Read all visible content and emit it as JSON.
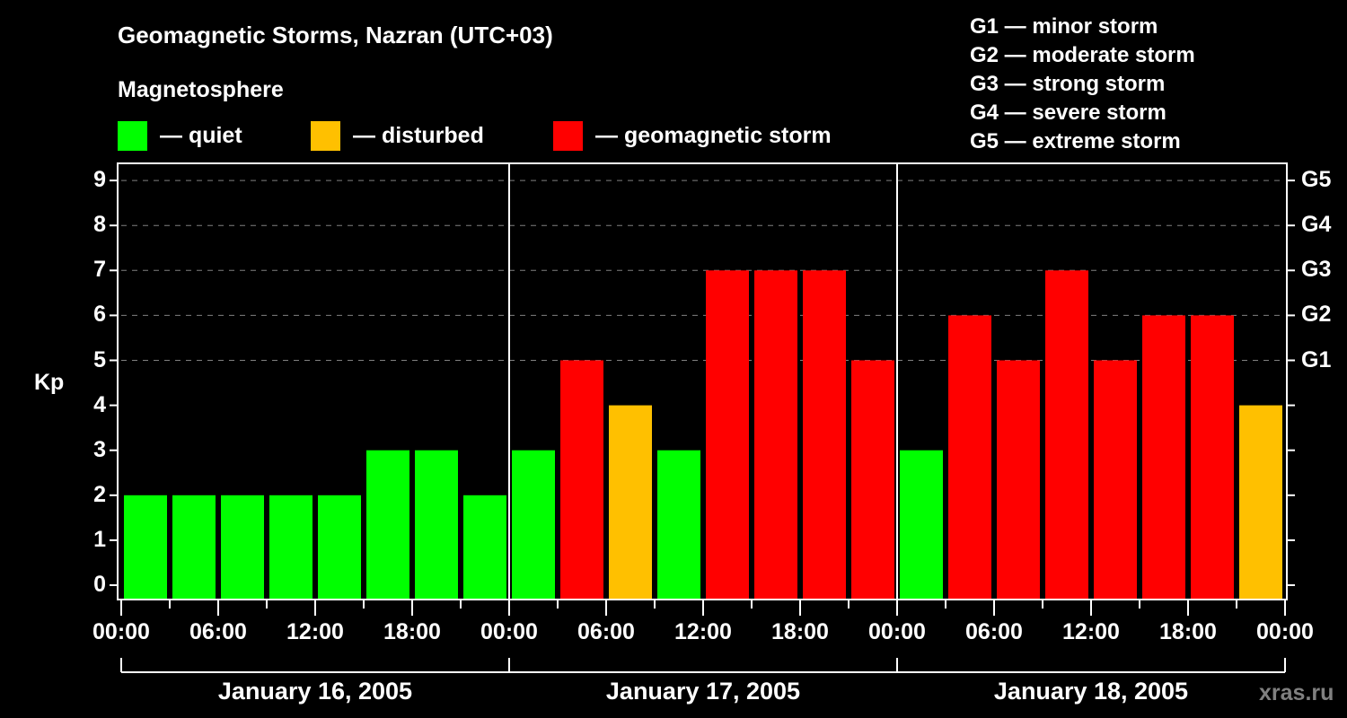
{
  "header": {
    "title": "Geomagnetic Storms, Nazran (UTC+03)",
    "subtitle": "Magnetosphere"
  },
  "legend": [
    {
      "label": "— quiet",
      "color": "#00ff00"
    },
    {
      "label": "— disturbed",
      "color": "#ffc000"
    },
    {
      "label": "— geomagnetic storm",
      "color": "#ff0000"
    }
  ],
  "g_legend": [
    "G1 — minor storm",
    "G2 — moderate storm",
    "G3 — strong storm",
    "G4 — severe storm",
    "G5 — extreme storm"
  ],
  "axis": {
    "ylabel": "Kp",
    "yticks": [
      "0",
      "1",
      "2",
      "3",
      "4",
      "5",
      "6",
      "7",
      "8",
      "9"
    ],
    "gticks": [
      {
        "kp": 5,
        "label": "G1"
      },
      {
        "kp": 6,
        "label": "G2"
      },
      {
        "kp": 7,
        "label": "G3"
      },
      {
        "kp": 8,
        "label": "G4"
      },
      {
        "kp": 9,
        "label": "G5"
      }
    ],
    "xticks": [
      "00:00",
      "06:00",
      "12:00",
      "18:00",
      "00:00",
      "06:00",
      "12:00",
      "18:00",
      "00:00",
      "06:00",
      "12:00",
      "18:00",
      "00:00"
    ],
    "days": [
      "January 16, 2005",
      "January 17, 2005",
      "January 18, 2005"
    ]
  },
  "watermark": "xras.ru",
  "colors": {
    "quiet": "#00ff00",
    "disturbed": "#ffc000",
    "storm": "#ff0000",
    "grid": "#808080"
  },
  "chart_data": {
    "type": "bar",
    "title": "Geomagnetic Storms, Nazran (UTC+03)",
    "xlabel": "",
    "ylabel": "Kp",
    "ylim": [
      0,
      9
    ],
    "grid": "dashed horizontal at Kp 5-9",
    "categories": [
      "Jan 16 00:00",
      "Jan 16 03:00",
      "Jan 16 06:00",
      "Jan 16 09:00",
      "Jan 16 12:00",
      "Jan 16 15:00",
      "Jan 16 18:00",
      "Jan 16 21:00",
      "Jan 17 00:00",
      "Jan 17 03:00",
      "Jan 17 06:00",
      "Jan 17 09:00",
      "Jan 17 12:00",
      "Jan 17 15:00",
      "Jan 17 18:00",
      "Jan 17 21:00",
      "Jan 18 00:00",
      "Jan 18 03:00",
      "Jan 18 06:00",
      "Jan 18 09:00",
      "Jan 18 12:00",
      "Jan 18 15:00",
      "Jan 18 18:00",
      "Jan 18 21:00"
    ],
    "values": [
      2,
      2,
      2,
      2,
      2,
      3,
      3,
      2,
      3,
      5,
      4,
      3,
      7,
      7,
      7,
      5,
      3,
      6,
      5,
      7,
      5,
      6,
      6,
      4
    ],
    "status": [
      "quiet",
      "quiet",
      "quiet",
      "quiet",
      "quiet",
      "quiet",
      "quiet",
      "quiet",
      "quiet",
      "storm",
      "disturbed",
      "quiet",
      "storm",
      "storm",
      "storm",
      "storm",
      "quiet",
      "storm",
      "storm",
      "storm",
      "storm",
      "storm",
      "storm",
      "disturbed"
    ],
    "legend": [
      "quiet",
      "disturbed",
      "geomagnetic storm"
    ],
    "right_axis": {
      "G1": 5,
      "G2": 6,
      "G3": 7,
      "G4": 8,
      "G5": 9
    }
  }
}
